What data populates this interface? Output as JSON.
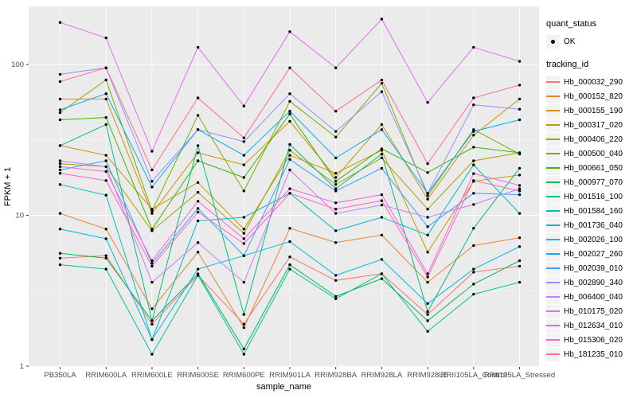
{
  "figure": {
    "panel_bg": "#EBEBEB",
    "grid_color": "#FFFFFF",
    "axis_text_color": "#4D4D4D",
    "tick_color": "#333333"
  },
  "axes": {
    "x_title": "sample_name",
    "y_title": "FPKM + 1",
    "y_tick_labels": [
      "1",
      "10",
      "100"
    ]
  },
  "legend": {
    "quant_status": {
      "title": "quant_status",
      "items": [
        {
          "label": "OK",
          "marker": "black-point"
        }
      ]
    },
    "tracking_id": {
      "title": "tracking_id"
    }
  },
  "chart_data": {
    "type": "line",
    "title": "",
    "xlabel": "sample_name",
    "ylabel": "FPKM + 1",
    "y_scale": "log10",
    "ylim": [
      1,
      243
    ],
    "y_major_ticks": [
      1,
      10,
      100
    ],
    "y_minor_ticks": [
      3.1623,
      31.623
    ],
    "grid": true,
    "legend_position": "right",
    "point_marker": {
      "shape": "solid-circle",
      "color": "#000000",
      "legend_label": "OK"
    },
    "categories": [
      "PB350LA",
      "RRIM600LA",
      "RRIM600LE",
      "RRIM600SE",
      "RRIM600PE",
      "RRIM901LA",
      "RRIM928BA",
      "RRIM928LA",
      "RRIM928LE",
      "RRII105LA_Control",
      "RRII105LA_Stressed"
    ],
    "series": [
      {
        "name": "Hb_000032_290",
        "color": "#F8766D",
        "values": [
          5.2,
          5.4,
          1.9,
          4.0,
          1.9,
          5.3,
          3.7,
          4.1,
          2.2,
          4.2,
          4.6
        ]
      },
      {
        "name": "Hb_000152_820",
        "color": "#EA8331",
        "values": [
          10.3,
          8.1,
          2.4,
          5.7,
          1.8,
          8.2,
          6.6,
          7.4,
          3.6,
          6.3,
          7.1
        ]
      },
      {
        "name": "Hb_000155_190",
        "color": "#D89000",
        "values": [
          59,
          59,
          10.3,
          26,
          21.6,
          42,
          17.8,
          40,
          12.8,
          34,
          59
        ]
      },
      {
        "name": "Hb_000317_020",
        "color": "#C09B00",
        "values": [
          29,
          25,
          11,
          16.5,
          8.1,
          25,
          19,
          27,
          5.7,
          16.8,
          18.5
        ]
      },
      {
        "name": "Hb_000406_220",
        "color": "#A3A500",
        "values": [
          22,
          21,
          7.9,
          14.2,
          7.6,
          27,
          16,
          24,
          11,
          23,
          26
        ]
      },
      {
        "name": "Hb_000500_040",
        "color": "#7CAE00",
        "values": [
          48,
          79,
          10.7,
          46,
          14.5,
          57,
          33,
          75,
          13.5,
          37,
          25.5
        ]
      },
      {
        "name": "Hb_000661_050",
        "color": "#39B600",
        "values": [
          43,
          44.5,
          8.1,
          23,
          17.8,
          47,
          16.8,
          27.6,
          19.2,
          28.3,
          26
        ]
      },
      {
        "name": "Hb_000977_070",
        "color": "#00BB4E",
        "values": [
          5.6,
          5.2,
          2.0,
          4.1,
          1.3,
          4.7,
          2.9,
          3.8,
          2.0,
          3.5,
          5.0
        ]
      },
      {
        "name": "Hb_001516_100",
        "color": "#00BF7D",
        "values": [
          29,
          40,
          2.0,
          29,
          2.2,
          29.5,
          15,
          25.5,
          2.3,
          8.2,
          20.5
        ]
      },
      {
        "name": "Hb_001584_160",
        "color": "#00C1A3",
        "values": [
          4.7,
          4.4,
          1.2,
          4.0,
          1.2,
          4.4,
          2.8,
          4.1,
          1.7,
          3.0,
          3.6
        ]
      },
      {
        "name": "Hb_001736_040",
        "color": "#00BFC4",
        "values": [
          16,
          13.6,
          1.5,
          9.2,
          9.7,
          14,
          7.9,
          9.7,
          7.4,
          21.6,
          10.3
        ]
      },
      {
        "name": "Hb_002026_100",
        "color": "#00BAE0",
        "values": [
          8.1,
          7.0,
          1.5,
          4.4,
          5.4,
          6.7,
          4.0,
          5.1,
          2.6,
          4.4,
          6.2
        ]
      },
      {
        "name": "Hb_002027_260",
        "color": "#00B0F6",
        "values": [
          50,
          64,
          15.4,
          37,
          25,
          49,
          24,
          37,
          14,
          36,
          43
        ]
      },
      {
        "name": "Hb_002039_010",
        "color": "#35A2FF",
        "values": [
          20,
          23,
          4.8,
          11.1,
          5.4,
          23.5,
          14.5,
          20.5,
          8.4,
          14,
          13.7
        ]
      },
      {
        "name": "Hb_002890_340",
        "color": "#9590FF",
        "values": [
          86,
          95,
          16.8,
          37,
          30.8,
          64,
          36,
          66,
          14,
          54,
          50.5
        ]
      },
      {
        "name": "Hb_006400_040",
        "color": "#C77CFF",
        "values": [
          23,
          21,
          3.6,
          6.6,
          3.6,
          20,
          10.3,
          11.7,
          9.7,
          11.8,
          15
        ]
      },
      {
        "name": "Hb_010175_020",
        "color": "#E76BF3",
        "values": [
          190,
          150,
          26.6,
          130,
          53,
          165,
          95,
          200,
          56,
          130,
          105
        ]
      },
      {
        "name": "Hb_012634_010",
        "color": "#FA62DB",
        "values": [
          21,
          19.5,
          5.0,
          12.4,
          7.0,
          15,
          12.1,
          13.7,
          4.1,
          18.9,
          15.8
        ]
      },
      {
        "name": "Hb_015306_020",
        "color": "#FF62BC",
        "values": [
          19,
          17,
          4.6,
          10.5,
          6.5,
          14,
          11,
          12.5,
          3.9,
          17,
          14.5
        ]
      },
      {
        "name": "Hb_181235_010",
        "color": "#FF6A98",
        "values": [
          77,
          95,
          20,
          60,
          32.6,
          95,
          49,
          79,
          22,
          60,
          73
        ]
      }
    ]
  }
}
